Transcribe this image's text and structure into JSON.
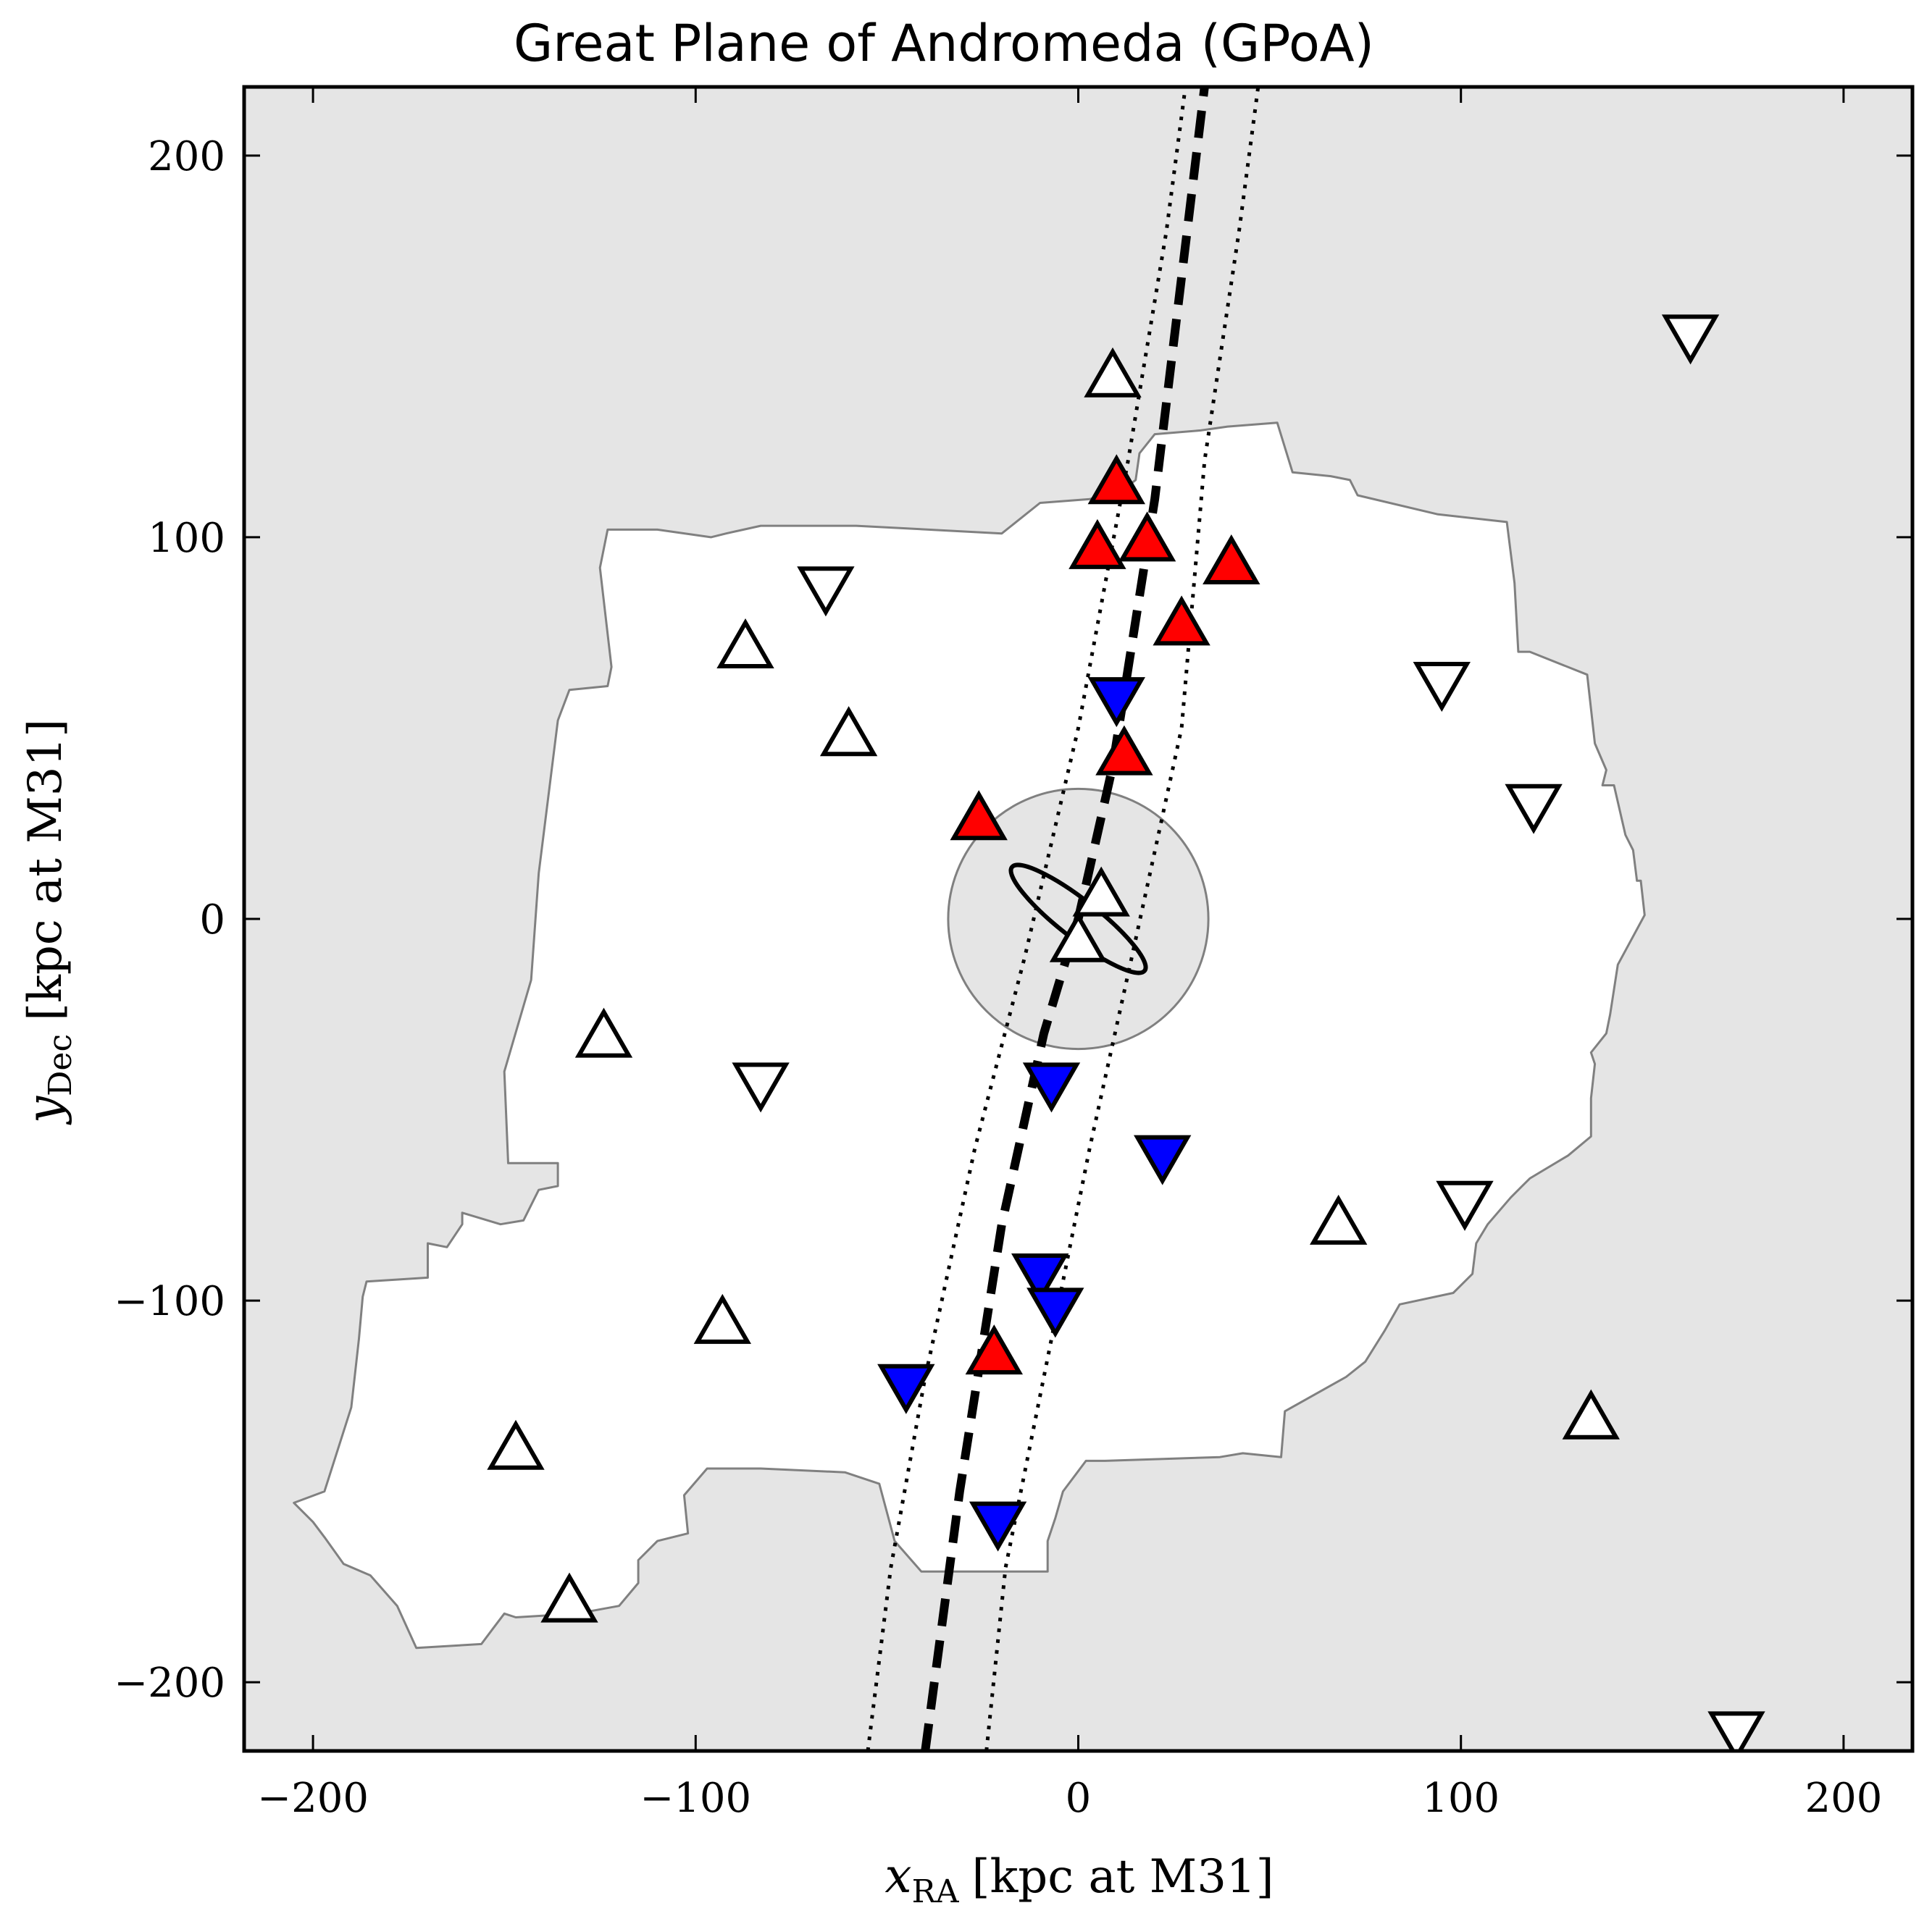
{
  "chart_data": {
    "type": "scatter",
    "title": "Great Plane of Andromeda (GPoA)",
    "xlabel": {
      "var": "x",
      "sub": "RA",
      "text": "[kpc at M31]"
    },
    "ylabel": {
      "var": "y",
      "sub": "Dec",
      "text": "[kpc at M31]"
    },
    "xlim": [
      -218,
      218
    ],
    "ylim": [
      -218,
      218
    ],
    "xticks": [
      -200,
      -100,
      0,
      100,
      200
    ],
    "yticks": [
      -200,
      -100,
      0,
      100,
      200
    ],
    "tick_labels": [
      "−200",
      "−100",
      "0",
      "100",
      "200"
    ],
    "grid": false,
    "colors": {
      "background": "#e5e5e5",
      "survey_fill": "#ffffff",
      "survey_edge": "#808080",
      "plane_member_receding": "#ff0000",
      "plane_member_approaching": "#0000ff",
      "non_member": "#ffffff",
      "marker_edge": "#000000"
    },
    "survey_footprint": [
      [
        -205,
        -153
      ],
      [
        -197,
        -150
      ],
      [
        -190,
        -128
      ],
      [
        -188,
        -110
      ],
      [
        -187,
        -99
      ],
      [
        -186,
        -95
      ],
      [
        -170,
        -94
      ],
      [
        -170,
        -85
      ],
      [
        -165,
        -86
      ],
      [
        -161,
        -80
      ],
      [
        -161,
        -77
      ],
      [
        -151,
        -80
      ],
      [
        -145,
        -79
      ],
      [
        -141,
        -71
      ],
      [
        -136,
        -70
      ],
      [
        -136,
        -64
      ],
      [
        -149,
        -64
      ],
      [
        -150,
        -40
      ],
      [
        -143,
        -16
      ],
      [
        -141,
        12
      ],
      [
        -136,
        52
      ],
      [
        -133,
        60
      ],
      [
        -123,
        61
      ],
      [
        -122,
        66
      ],
      [
        -125,
        92
      ],
      [
        -123,
        102
      ],
      [
        -110,
        102
      ],
      [
        -96,
        100
      ],
      [
        -92,
        101
      ],
      [
        -83,
        103
      ],
      [
        -72,
        103
      ],
      [
        -58,
        103
      ],
      [
        -20,
        101
      ],
      [
        -10,
        109
      ],
      [
        3,
        110
      ],
      [
        11,
        112
      ],
      [
        15,
        115
      ],
      [
        16,
        122
      ],
      [
        20,
        127
      ],
      [
        32,
        128
      ],
      [
        39,
        129
      ],
      [
        52,
        130
      ],
      [
        56,
        117
      ],
      [
        66,
        116
      ],
      [
        71,
        115
      ],
      [
        73,
        111
      ],
      [
        94,
        106
      ],
      [
        112,
        104
      ],
      [
        114,
        88
      ],
      [
        115,
        70
      ],
      [
        118,
        70
      ],
      [
        133,
        64
      ],
      [
        135,
        46
      ],
      [
        138,
        39
      ],
      [
        137,
        35
      ],
      [
        140,
        35
      ],
      [
        143,
        22
      ],
      [
        145,
        18
      ],
      [
        146,
        10
      ],
      [
        147,
        10
      ],
      [
        148,
        1
      ],
      [
        141,
        -12
      ],
      [
        139,
        -25
      ],
      [
        138,
        -30
      ],
      [
        134,
        -35
      ],
      [
        135,
        -38
      ],
      [
        134,
        -47
      ],
      [
        134,
        -57
      ],
      [
        128,
        -62
      ],
      [
        118,
        -68
      ],
      [
        116,
        -70
      ],
      [
        113,
        -73
      ],
      [
        107,
        -80
      ],
      [
        104,
        -85
      ],
      [
        103,
        -93
      ],
      [
        98,
        -98
      ],
      [
        84,
        -101
      ],
      [
        80,
        -108
      ],
      [
        75,
        -116
      ],
      [
        70,
        -120
      ],
      [
        54,
        -129
      ],
      [
        53,
        -141
      ],
      [
        43,
        -140
      ],
      [
        37,
        -141
      ],
      [
        7,
        -142
      ],
      [
        2,
        -142
      ],
      [
        -4,
        -150
      ],
      [
        -6,
        -157
      ],
      [
        -8,
        -163
      ],
      [
        -8,
        -171
      ],
      [
        -41,
        -171
      ],
      [
        -48,
        -163
      ],
      [
        -52,
        -148
      ],
      [
        -61,
        -145
      ],
      [
        -83,
        -144
      ],
      [
        -97,
        -144
      ],
      [
        -103,
        -151
      ],
      [
        -102,
        -161
      ],
      [
        -110,
        -163
      ],
      [
        -115,
        -168
      ],
      [
        -115,
        -174
      ],
      [
        -120,
        -180
      ],
      [
        -131,
        -182
      ],
      [
        -147,
        -183
      ],
      [
        -150,
        -182
      ],
      [
        -153,
        -186
      ],
      [
        -156,
        -190
      ],
      [
        -173,
        -191
      ],
      [
        -178,
        -180
      ],
      [
        -185,
        -172
      ],
      [
        -192,
        -169
      ],
      [
        -197,
        -162
      ],
      [
        -200,
        -158
      ],
      [
        -205,
        -153
      ]
    ],
    "inner_circle": {
      "center": [
        0,
        0
      ],
      "radius": 34
    },
    "m31_disk": {
      "center": [
        0,
        0
      ],
      "semi_major": 22,
      "semi_minor": 5,
      "angle_deg": 38
    },
    "plane_fit": {
      "style": "dashed",
      "points": [
        [
          -40,
          -218
        ],
        [
          -31,
          -150
        ],
        [
          -20,
          -80
        ],
        [
          -9,
          -30
        ],
        [
          0,
          0
        ],
        [
          9,
          40
        ],
        [
          20,
          110
        ],
        [
          33,
          218
        ]
      ]
    },
    "plane_bound_left": {
      "style": "dotted",
      "points": [
        [
          -55,
          -218
        ],
        [
          -49,
          -170
        ],
        [
          -40,
          -120
        ],
        [
          -27,
          -60
        ],
        [
          -14,
          -10
        ],
        [
          0,
          50
        ],
        [
          13,
          120
        ],
        [
          23,
          180
        ],
        [
          28,
          218
        ]
      ]
    },
    "plane_bound_right": {
      "style": "dotted",
      "points": [
        [
          -24,
          -218
        ],
        [
          -19,
          -170
        ],
        [
          -9,
          -120
        ],
        [
          3,
          -60
        ],
        [
          14,
          -10
        ],
        [
          27,
          50
        ],
        [
          33,
          120
        ],
        [
          42,
          180
        ],
        [
          47,
          218
        ]
      ]
    },
    "series": [
      {
        "name": "",
        "marker": "triangle-up",
        "fill": "#ff0000",
        "points": [
          [
            10,
            114
          ],
          [
            5,
            97
          ],
          [
            18,
            99
          ],
          [
            40,
            93
          ],
          [
            27,
            77
          ],
          [
            12,
            43
          ],
          [
            -26,
            26
          ],
          [
            -22,
            -114
          ]
        ]
      },
      {
        "name": "",
        "marker": "triangle-down",
        "fill": "#0000ff",
        "points": [
          [
            10,
            58
          ],
          [
            -7,
            -43
          ],
          [
            22,
            -62
          ],
          [
            -10,
            -93
          ],
          [
            -6,
            -102
          ],
          [
            -45,
            -122
          ],
          [
            -21,
            -158
          ]
        ]
      },
      {
        "name": "",
        "marker": "triangle-up",
        "fill": "#ffffff",
        "points": [
          [
            9,
            142
          ],
          [
            -87,
            71
          ],
          [
            -60,
            48
          ],
          [
            6,
            6
          ],
          [
            0,
            -6
          ],
          [
            -124,
            -31
          ],
          [
            68,
            -80
          ],
          [
            -93,
            -106
          ],
          [
            -147,
            -139
          ],
          [
            134,
            -131
          ],
          [
            -133,
            -179
          ]
        ]
      },
      {
        "name": "",
        "marker": "triangle-down",
        "fill": "#ffffff",
        "points": [
          [
            160,
            153
          ],
          [
            -66,
            87
          ],
          [
            95,
            62
          ],
          [
            119,
            30
          ],
          [
            -83,
            -43
          ],
          [
            101,
            -74
          ],
          [
            172,
            -213
          ]
        ]
      }
    ]
  }
}
